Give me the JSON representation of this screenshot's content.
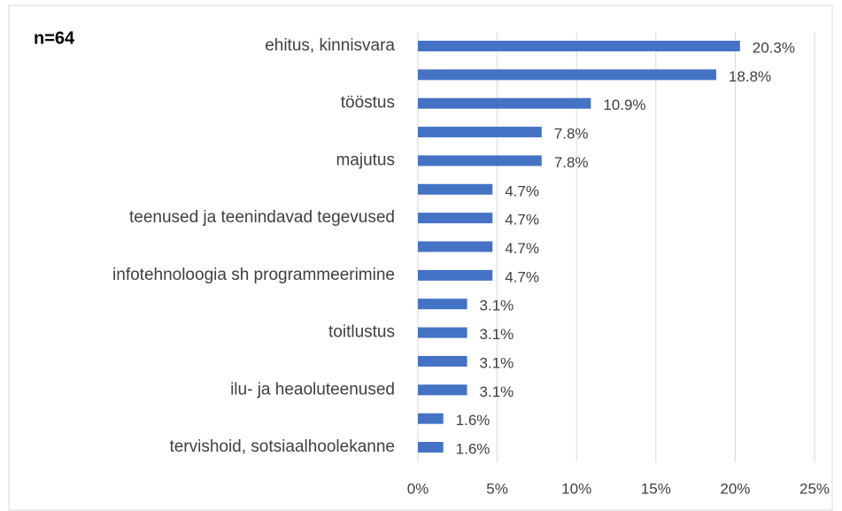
{
  "chart_data": {
    "type": "barh",
    "annotation": "n=64",
    "categories": [
      "ehitus, kinnisvara",
      null,
      "tööstus",
      null,
      "majutus",
      null,
      "teenused ja teenindavad tegevused",
      null,
      "infotehnoloogia sh programmeerimine",
      null,
      "toitlustus",
      null,
      "ilu- ja heaoluteenused",
      null,
      "tervishoid, sotsiaalhoolekanne"
    ],
    "values": [
      20.3,
      18.8,
      10.9,
      7.8,
      7.8,
      4.7,
      4.7,
      4.7,
      4.7,
      3.1,
      3.1,
      3.1,
      3.1,
      1.6,
      1.6
    ],
    "value_labels": [
      "20.3%",
      "18.8%",
      "10.9%",
      "7.8%",
      "7.8%",
      "4.7%",
      "4.7%",
      "4.7%",
      "4.7%",
      "3.1%",
      "3.1%",
      "3.1%",
      "3.1%",
      "1.6%",
      "1.6%"
    ],
    "color": "#4472c4",
    "xlim": [
      0,
      25
    ],
    "xticks": [
      {
        "value": 0,
        "label": "0%"
      },
      {
        "value": 5,
        "label": "5%"
      },
      {
        "value": 10,
        "label": "10%"
      },
      {
        "value": 15,
        "label": "15%"
      },
      {
        "value": 20,
        "label": "20%"
      },
      {
        "value": 25,
        "label": "25%"
      }
    ],
    "grid": true
  }
}
